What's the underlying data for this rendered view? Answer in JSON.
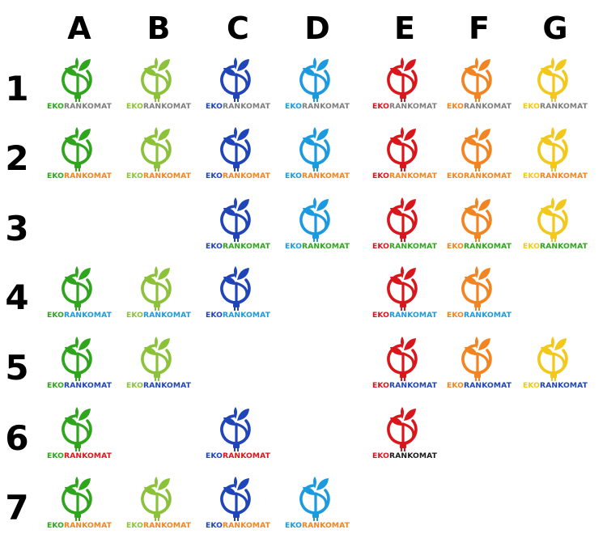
{
  "column_labels": [
    "A",
    "B",
    "C",
    "D",
    "E",
    "F",
    "G"
  ],
  "row_labels": [
    "1",
    "2",
    "3",
    "4",
    "5",
    "6",
    "7"
  ],
  "wordmark": {
    "prefix": "EKO",
    "suffix": "RANKOMAT"
  },
  "palette": {
    "A": "#2ea51d",
    "B": "#8cc23a",
    "C": "#1f45b8",
    "D": "#1c9ae0",
    "E": "#d9161c",
    "F": "#f28421",
    "G": "#f2c81a"
  },
  "suffix_colors": {
    "gray": "#7d7d7d",
    "orange": "#f28421",
    "green": "#2ea51d",
    "sky": "#1c9ae0",
    "red": "#d9161c",
    "black": "#1a1a1a",
    "blue": "#1f45b8"
  },
  "logos": [
    {
      "col": "A",
      "row": "1",
      "prefix_color": "A",
      "suffix_color": "gray"
    },
    {
      "col": "B",
      "row": "1",
      "prefix_color": "B",
      "suffix_color": "gray"
    },
    {
      "col": "C",
      "row": "1",
      "prefix_color": "C",
      "suffix_color": "gray"
    },
    {
      "col": "D",
      "row": "1",
      "prefix_color": "D",
      "suffix_color": "gray"
    },
    {
      "col": "E",
      "row": "1",
      "prefix_color": "E",
      "suffix_color": "gray"
    },
    {
      "col": "F",
      "row": "1",
      "prefix_color": "F",
      "suffix_color": "gray"
    },
    {
      "col": "G",
      "row": "1",
      "prefix_color": "G",
      "suffix_color": "gray"
    },
    {
      "col": "A",
      "row": "2",
      "prefix_color": "A",
      "suffix_color": "orange"
    },
    {
      "col": "B",
      "row": "2",
      "prefix_color": "B",
      "suffix_color": "orange"
    },
    {
      "col": "C",
      "row": "2",
      "prefix_color": "C",
      "suffix_color": "orange"
    },
    {
      "col": "D",
      "row": "2",
      "prefix_color": "D",
      "suffix_color": "orange"
    },
    {
      "col": "E",
      "row": "2",
      "prefix_color": "E",
      "suffix_color": "orange"
    },
    {
      "col": "F",
      "row": "2",
      "prefix_color": "F",
      "suffix_color": "orange"
    },
    {
      "col": "G",
      "row": "2",
      "prefix_color": "G",
      "suffix_color": "orange"
    },
    {
      "col": "C",
      "row": "3",
      "prefix_color": "C",
      "suffix_color": "green"
    },
    {
      "col": "D",
      "row": "3",
      "prefix_color": "D",
      "suffix_color": "green"
    },
    {
      "col": "E",
      "row": "3",
      "prefix_color": "E",
      "suffix_color": "green"
    },
    {
      "col": "F",
      "row": "3",
      "prefix_color": "F",
      "suffix_color": "green"
    },
    {
      "col": "G",
      "row": "3",
      "prefix_color": "G",
      "suffix_color": "green"
    },
    {
      "col": "A",
      "row": "4",
      "prefix_color": "A",
      "suffix_color": "sky"
    },
    {
      "col": "B",
      "row": "4",
      "prefix_color": "B",
      "suffix_color": "sky"
    },
    {
      "col": "C",
      "row": "4",
      "prefix_color": "C",
      "suffix_color": "sky"
    },
    {
      "col": "E",
      "row": "4",
      "prefix_color": "E",
      "suffix_color": "sky"
    },
    {
      "col": "F",
      "row": "4",
      "prefix_color": "F",
      "suffix_color": "sky"
    },
    {
      "col": "A",
      "row": "5",
      "prefix_color": "A",
      "suffix_color": "blue"
    },
    {
      "col": "B",
      "row": "5",
      "prefix_color": "B",
      "suffix_color": "blue"
    },
    {
      "col": "E",
      "row": "5",
      "prefix_color": "E",
      "suffix_color": "blue"
    },
    {
      "col": "F",
      "row": "5",
      "prefix_color": "F",
      "suffix_color": "blue"
    },
    {
      "col": "G",
      "row": "5",
      "prefix_color": "G",
      "suffix_color": "blue"
    },
    {
      "col": "A",
      "row": "6",
      "prefix_color": "A",
      "suffix_color": "red"
    },
    {
      "col": "C",
      "row": "6",
      "prefix_color": "C",
      "suffix_color": "red"
    },
    {
      "col": "E",
      "row": "6",
      "prefix_color": "E",
      "suffix_color": "black"
    },
    {
      "col": "A",
      "row": "7",
      "prefix_color": "A",
      "suffix_color": "orange"
    },
    {
      "col": "B",
      "row": "7",
      "prefix_color": "B",
      "suffix_color": "orange"
    },
    {
      "col": "C",
      "row": "7",
      "prefix_color": "C",
      "suffix_color": "orange"
    },
    {
      "col": "D",
      "row": "7",
      "prefix_color": "D",
      "suffix_color": "orange"
    }
  ]
}
